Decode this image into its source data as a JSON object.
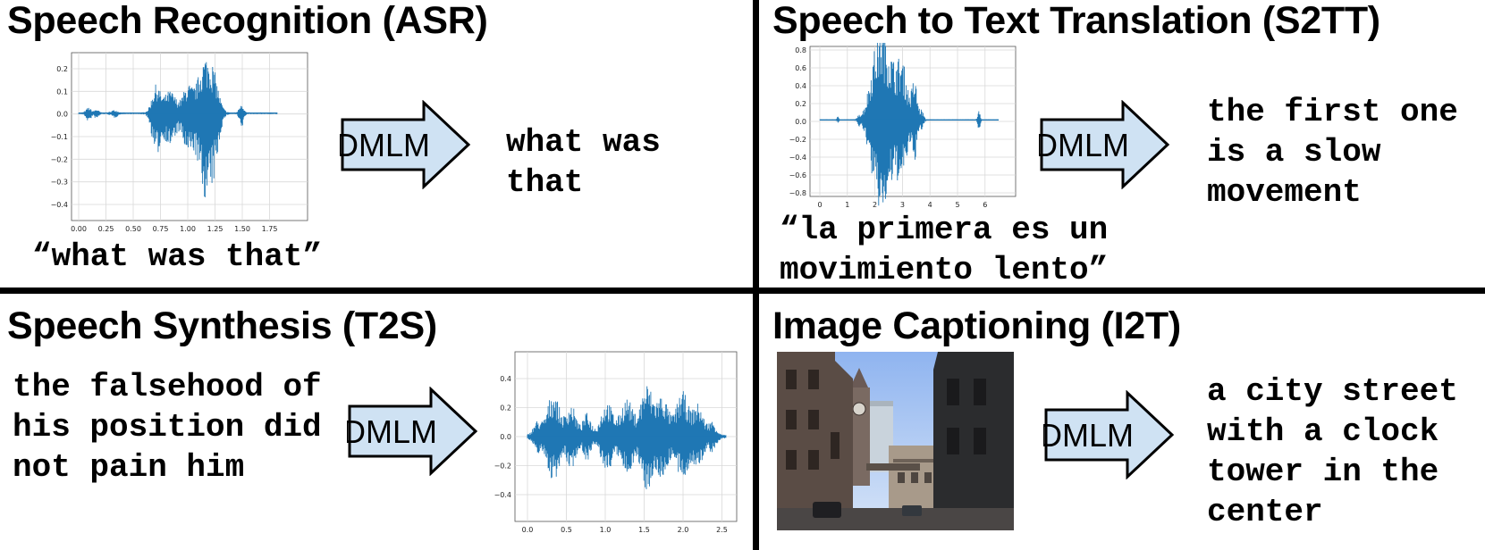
{
  "panels": {
    "asr": {
      "title": "Speech Recognition (ASR)",
      "caption": "“what was that”",
      "arrow_label": "DMLM",
      "output": "what was\nthat",
      "y_ticks": [
        "0.2",
        "0.1",
        "0.0",
        "−0.1",
        "−0.2",
        "−0.3",
        "−0.4"
      ],
      "x_ticks": [
        "0.00",
        "0.25",
        "0.50",
        "0.75",
        "1.00",
        "1.25",
        "1.50",
        "1.75"
      ]
    },
    "s2tt": {
      "title": "Speech to Text Translation (S2TT)",
      "caption": "“la primera es un\nmovimiento lento”",
      "arrow_label": "DMLM",
      "output": "the first one\nis a slow\nmovement",
      "y_ticks": [
        "0.8",
        "0.6",
        "0.4",
        "0.2",
        "0.0",
        "−0.2",
        "−0.4",
        "−0.6",
        "−0.8"
      ],
      "x_ticks": [
        "0",
        "1",
        "2",
        "3",
        "4",
        "5",
        "6"
      ]
    },
    "t2s": {
      "title": "Speech Synthesis (T2S)",
      "input": "the falsehood of\nhis position did\nnot pain him",
      "arrow_label": "DMLM",
      "y_ticks": [
        "0.4",
        "0.2",
        "0.0",
        "−0.2",
        "−0.4"
      ],
      "x_ticks": [
        "0.0",
        "0.5",
        "1.0",
        "1.5",
        "2.0",
        "2.5"
      ]
    },
    "i2t": {
      "title": "Image Captioning (I2T)",
      "arrow_label": "DMLM",
      "output": "a city street\nwith a clock\ntower in the\ncenter"
    }
  },
  "colors": {
    "waveform": "#1f77b4",
    "arrow_fill": "#cfe2f3",
    "grid": "#d9d9d9"
  }
}
